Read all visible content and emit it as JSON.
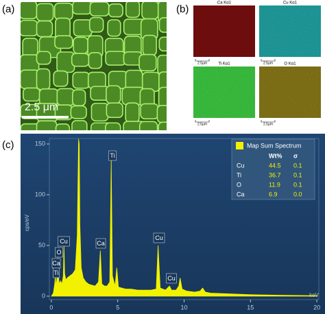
{
  "panels": {
    "a": {
      "label": "(a)",
      "scale_bar": "2.5 μm"
    },
    "b": {
      "label": "(b)",
      "maps": [
        {
          "title": "Ca Kα1",
          "scale": "2.5μm"
        },
        {
          "title": "Cu Kα1",
          "scale": "2.5μm"
        },
        {
          "title": "Ti Kα1",
          "scale": "2.5μm"
        },
        {
          "title": "O Kα1",
          "scale": "2.5μm"
        }
      ]
    },
    "c": {
      "label": "(c)"
    }
  },
  "chart_data": {
    "type": "area",
    "color": "#f2f200",
    "x": [
      0,
      0.15,
      0.25,
      0.3,
      0.35,
      0.4,
      0.45,
      0.5,
      0.55,
      0.6,
      0.7,
      0.8,
      0.9,
      0.95,
      1.0,
      1.1,
      1.2,
      1.4,
      1.6,
      1.8,
      1.95,
      2.05,
      2.1,
      2.15,
      2.25,
      2.4,
      2.6,
      2.8,
      3.0,
      3.3,
      3.55,
      3.69,
      3.8,
      4.0,
      4.2,
      4.4,
      4.51,
      4.6,
      4.8,
      4.93,
      5.05,
      5.3,
      5.6,
      6.0,
      6.5,
      7.0,
      7.5,
      7.9,
      8.04,
      8.2,
      8.6,
      8.9,
      9.05,
      9.4,
      9.6,
      9.7,
      9.85,
      10.2,
      10.8,
      11.2,
      11.4,
      11.6,
      12,
      13,
      14,
      15,
      16,
      17,
      18,
      19,
      20
    ],
    "values": [
      0,
      3,
      12,
      20,
      10,
      15,
      22,
      38,
      18,
      12,
      15,
      12,
      20,
      50,
      22,
      16,
      18,
      20,
      22,
      26,
      60,
      155,
      150,
      70,
      28,
      18,
      14,
      12,
      11,
      10,
      14,
      45,
      12,
      10,
      10,
      14,
      135,
      20,
      10,
      28,
      9,
      8,
      7,
      7,
      6,
      6,
      6,
      7,
      50,
      8,
      6,
      10,
      6,
      6,
      10,
      18,
      7,
      5,
      4,
      5,
      8,
      4,
      3,
      2.5,
      2,
      1.5,
      1.2,
      1,
      0.8,
      0.6,
      0.5
    ],
    "xlim": [
      -0.15,
      20.15
    ],
    "ylim": [
      -3.4,
      155.4
    ],
    "xticks": [
      0,
      5,
      10,
      15,
      20
    ],
    "yticks": [
      0,
      50,
      100,
      150
    ],
    "xlabel": "keV",
    "ylabel": "cps/eV",
    "peak_labels": [
      "Cu",
      "O",
      "Ca",
      "Ti",
      "Ti",
      "Ca",
      "Cu",
      "Cu"
    ],
    "legend": {
      "title": "Map Sum Spectrum",
      "columns": [
        "Wt%",
        "σ"
      ],
      "rows": [
        [
          "Cu",
          "44.5",
          "0.1"
        ],
        [
          "Ti",
          "36.7",
          "0.1"
        ],
        [
          "O",
          "11.9",
          "0.1"
        ],
        [
          "Ca",
          "6.9",
          "0.0"
        ]
      ]
    }
  }
}
